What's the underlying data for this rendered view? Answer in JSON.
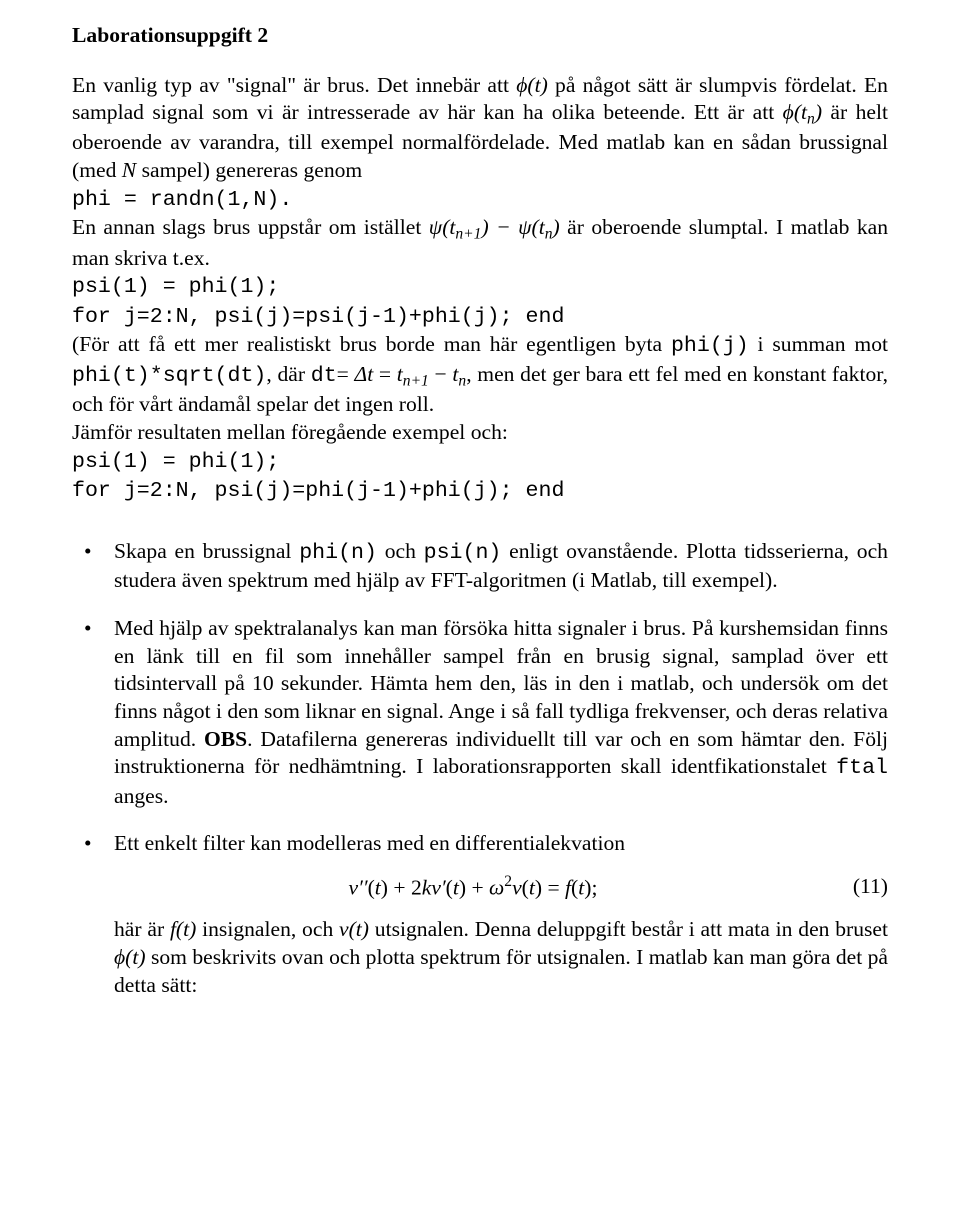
{
  "heading": "Laborationsuppgift 2",
  "p1a": "En vanlig typ av \"signal\" är brus. Det innebär att ",
  "p1b": " på något sätt är slumpvis fördelat. En samplad signal som vi är intresserade av här kan ha olika beteende. Ett är att ",
  "p1c": " är helt oberoende av varandra, till exempel normalfördelade. Med matlab kan en sådan brussignal (med ",
  "p1d": " sampel) genereras genom",
  "code1": "phi = randn(1,N).",
  "p2a": "En annan slags brus uppstår om istället ",
  "p2b": " är oberoende slumptal. I matlab kan man skriva t.ex.",
  "code2a": "psi(1) = phi(1);",
  "code2b": "for j=2:N, psi(j)=psi(j-1)+phi(j); end",
  "p3a": "(För att få ett mer realistiskt brus borde man här egentligen byta ",
  "p3b": " i summan mot ",
  "p3c": ", där ",
  "p3d": ", men det ger bara ett fel med en konstant faktor, och för vårt ändamål spelar det ingen roll.",
  "p4": "Jämför resultaten mellan föregående exempel och:",
  "code3a": "psi(1) = phi(1);",
  "code3b": "for j=2:N, psi(j)=phi(j-1)+phi(j); end",
  "bullet1a": "Skapa en brussignal ",
  "bullet1b": " och ",
  "bullet1c": " enligt ovanstående. Plotta tidsserierna, och studera även spektrum med hjälp av FFT-algoritmen (i Matlab, till exempel).",
  "bullet2a": "Med hjälp av spektralanalys kan man försöka hitta signaler i brus. På kurshemsidan finns en länk till en fil som innehåller sampel från en brusig signal, samplad över ett tidsintervall på 10 sekunder. Hämta hem den, läs in den i matlab, och undersök om det finns något i den som liknar en signal. Ange i så fall tydliga frekvenser, och deras relativa amplitud. ",
  "bullet2_obs": "OBS",
  "bullet2b": ". Datafilerna genereras individuellt till var och en som hämtar den. Följ instruktionerna för nedhämtning. I laborationsrapporten skall identfikationstalet ",
  "bullet2c": " anges.",
  "bullet3": "Ett enkelt filter kan modelleras med en differentialekvation",
  "eqnum": "(11)",
  "p5a": "här är ",
  "p5b": " insignalen, och ",
  "p5c": " utsignalen. Denna deluppgift består i att mata in den bruset ",
  "p5d": " som beskrivits ovan och plotta spektrum för utsignalen. I matlab kan man göra det på detta sätt:",
  "code_phi_j": "phi(j)",
  "code_phi_t_sqrt": "phi(t)*sqrt(dt)",
  "code_dt": "dt",
  "code_phi_n": "phi(n)",
  "code_psi_n": "psi(n)",
  "code_ftal": "ftal"
}
